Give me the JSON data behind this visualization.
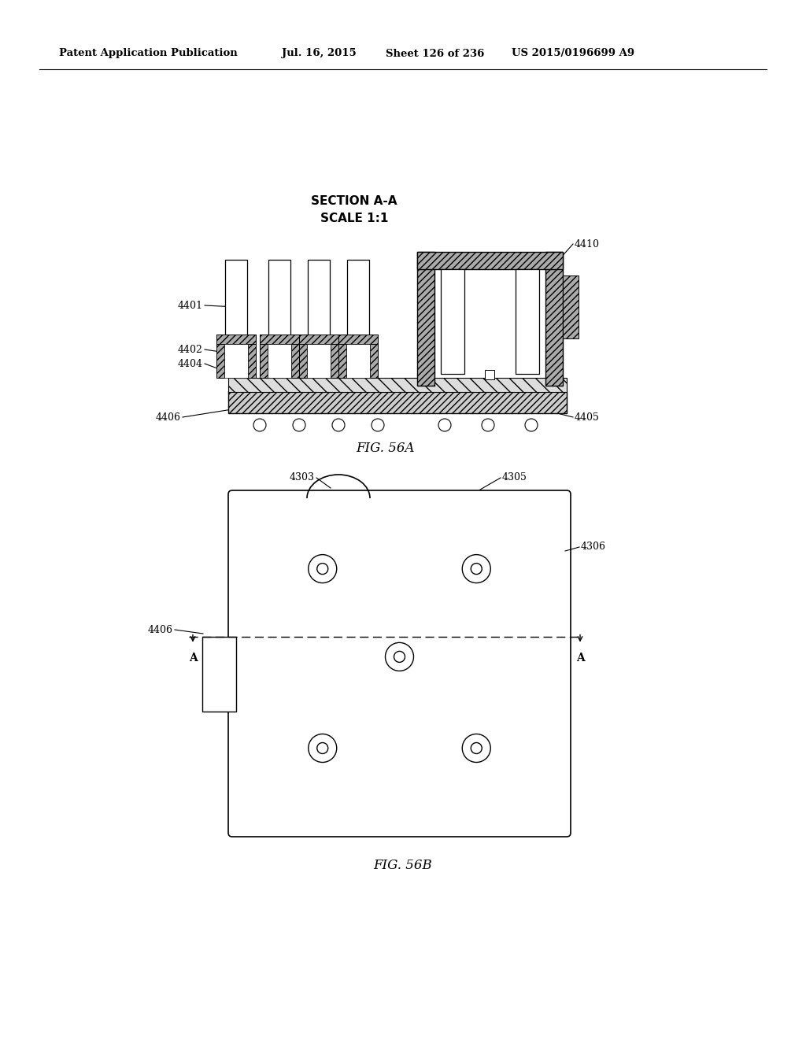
{
  "bg_color": "#ffffff",
  "header_text": "Patent Application Publication",
  "header_date": "Jul. 16, 2015",
  "header_sheet": "Sheet 126 of 236",
  "header_patent": "US 2015/0196699 A9",
  "fig56a_label": "FIG. 56A",
  "fig56b_label": "FIG. 56B",
  "section_label1": "SECTION A-A",
  "section_label2": "SCALE 1:1"
}
